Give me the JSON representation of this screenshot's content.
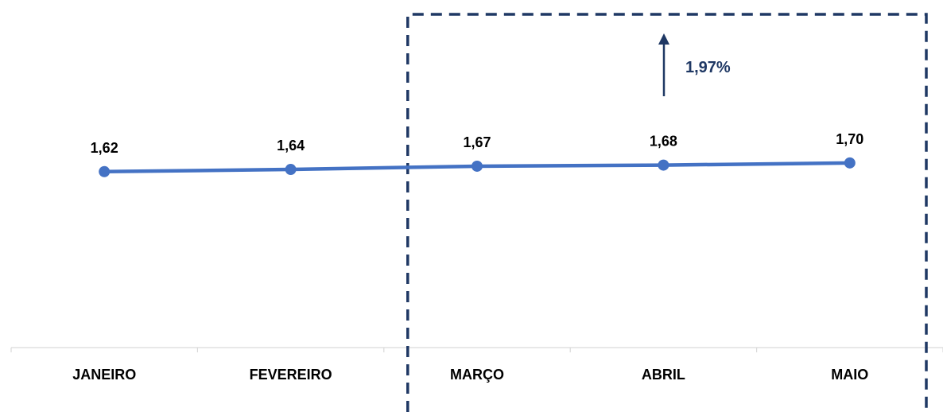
{
  "chart_data": {
    "type": "line",
    "categories": [
      "JANEIRO",
      "FEVEREIRO",
      "MARÇO",
      "ABRIL",
      "MAIO"
    ],
    "series": [
      {
        "values": [
          1.62,
          1.64,
          1.67,
          1.68,
          1.7
        ],
        "labels": [
          "1,62",
          "1,64",
          "1,67",
          "1,68",
          "1,70"
        ],
        "color": "#4472C4"
      }
    ],
    "ylim": [
      0,
      3.2
    ],
    "grid": false,
    "legend": "none",
    "annotations": [
      {
        "type": "dashed-box",
        "from_category": "MARÇO",
        "to_category": "MAIO",
        "color": "#1F3864"
      },
      {
        "type": "arrow-up",
        "text": "1,97%",
        "color": "#1F3864"
      }
    ]
  }
}
